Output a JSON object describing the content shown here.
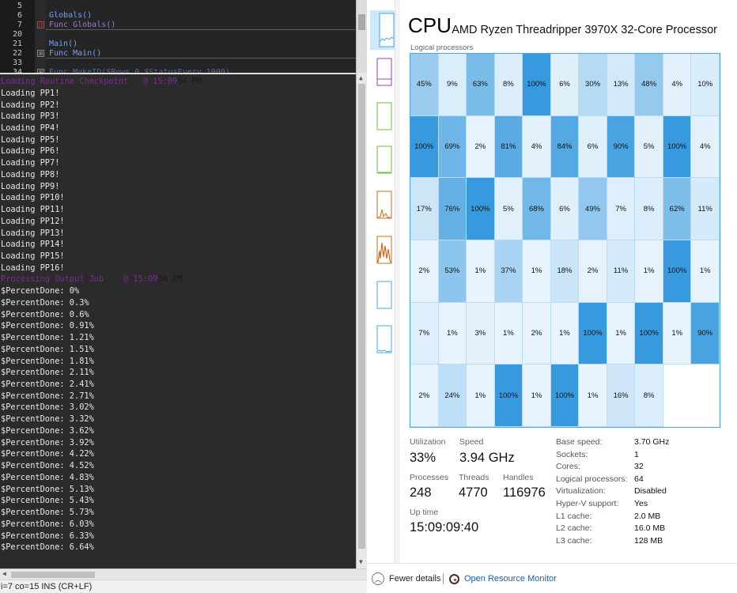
{
  "editor": {
    "lines": [
      {
        "num": "5",
        "text": "",
        "fold": ""
      },
      {
        "num": "6",
        "text": "Globals()",
        "fold": ""
      },
      {
        "num": "7",
        "text": "Func Globals()",
        "fold": "red"
      },
      {
        "num": "20",
        "text": "",
        "fold": ""
      },
      {
        "num": "21",
        "text": "Main()",
        "fold": ""
      },
      {
        "num": "22",
        "text": "Func Main()",
        "fold": "grey"
      },
      {
        "num": "33",
        "text": "",
        "fold": ""
      },
      {
        "num": "34",
        "text": "Func MakeID($Rows,0,$StatusEvery,1000)",
        "fold": "grey"
      }
    ]
  },
  "console": {
    "lines": [
      {
        "text": "Loading Routine Checkpoint   @ 15:09",
        "tail": "04 PM",
        "style": "purple"
      },
      {
        "text": "Loading PP1!"
      },
      {
        "text": "Loading PP2!"
      },
      {
        "text": "Loading PP3!"
      },
      {
        "text": "Loading PP4!"
      },
      {
        "text": "Loading PP5!"
      },
      {
        "text": "Loading PP6!"
      },
      {
        "text": "Loading PP7!"
      },
      {
        "text": "Loading PP8!"
      },
      {
        "text": "Loading PP9!"
      },
      {
        "text": "Loading PP10!"
      },
      {
        "text": "Loading PP11!"
      },
      {
        "text": "Loading PP12!"
      },
      {
        "text": "Loading PP13!"
      },
      {
        "text": "Loading PP14!"
      },
      {
        "text": "Loading PP15!"
      },
      {
        "text": "Loading PP16!"
      },
      {
        "text": "Processing Output Job    @ 15:09",
        "tail": "36 PM",
        "style": "purple"
      },
      {
        "text": "$PercentDone: 0%"
      },
      {
        "text": "$PercentDone: 0.3%"
      },
      {
        "text": "$PercentDone: 0.6%"
      },
      {
        "text": "$PercentDone: 0.91%"
      },
      {
        "text": "$PercentDone: 1.21%"
      },
      {
        "text": "$PercentDone: 1.51%"
      },
      {
        "text": "$PercentDone: 1.81%"
      },
      {
        "text": "$PercentDone: 2.11%"
      },
      {
        "text": "$PercentDone: 2.41%"
      },
      {
        "text": "$PercentDone: 2.71%"
      },
      {
        "text": "$PercentDone: 3.02%"
      },
      {
        "text": "$PercentDone: 3.32%"
      },
      {
        "text": "$PercentDone: 3.62%"
      },
      {
        "text": "$PercentDone: 3.92%"
      },
      {
        "text": "$PercentDone: 4.22%"
      },
      {
        "text": "$PercentDone: 4.52%"
      },
      {
        "text": "$PercentDone: 4.83%"
      },
      {
        "text": "$PercentDone: 5.13%"
      },
      {
        "text": "$PercentDone: 5.43%"
      },
      {
        "text": "$PercentDone: 5.73%"
      },
      {
        "text": "$PercentDone: 6.03%"
      },
      {
        "text": "$PercentDone: 6.33%"
      },
      {
        "text": "$PercentDone: 6.64%"
      }
    ]
  },
  "statusbar": {
    "text": "i=7 co=15 INS (CR+LF)"
  },
  "taskmgr": {
    "title": "CPU",
    "cpu_name": "AMD Ryzen Threadripper 3970X 32-Core Processor",
    "logical_label": "Logical processors",
    "accent": "#4aa5e6",
    "processors": [
      45,
      9,
      63,
      8,
      100,
      6,
      30,
      13,
      48,
      4,
      10,
      100,
      69,
      2,
      81,
      4,
      84,
      6,
      90,
      5,
      100,
      4,
      17,
      76,
      100,
      5,
      68,
      6,
      49,
      7,
      8,
      62,
      11,
      2,
      53,
      1,
      37,
      1,
      18,
      2,
      11,
      1,
      100,
      1,
      7,
      1,
      3,
      1,
      2,
      1,
      100,
      1,
      100,
      1,
      90,
      2,
      24,
      1,
      100,
      1,
      100,
      1,
      16,
      8
    ],
    "stats": {
      "utilization_label": "Utilization",
      "utilization": "33%",
      "speed_label": "Speed",
      "speed": "3.94 GHz",
      "processes_label": "Processes",
      "processes": "248",
      "threads_label": "Threads",
      "threads": "4770",
      "handles_label": "Handles",
      "handles": "116976",
      "uptime_label": "Up time",
      "uptime": "15:09:09:40"
    },
    "specs": [
      {
        "key": "Base speed:",
        "value": "3.70 GHz"
      },
      {
        "key": "Sockets:",
        "value": "1"
      },
      {
        "key": "Cores:",
        "value": "32"
      },
      {
        "key": "Logical processors:",
        "value": "64"
      },
      {
        "key": "Virtualization:",
        "value": "Disabled"
      },
      {
        "key": "Hyper-V support:",
        "value": "Yes"
      },
      {
        "key": "L1 cache:",
        "value": "2.0 MB"
      },
      {
        "key": "L2 cache:",
        "value": "16.0 MB"
      },
      {
        "key": "L3 cache:",
        "value": "128 MB"
      }
    ],
    "footer": {
      "fewer_details": "Fewer details",
      "open_resmon": "Open Resource Monitor"
    }
  }
}
